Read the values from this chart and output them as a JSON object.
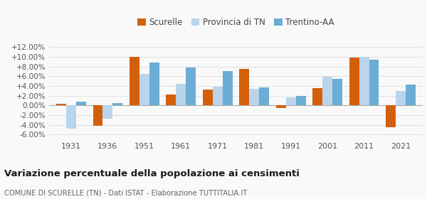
{
  "years": [
    1931,
    1936,
    1951,
    1961,
    1971,
    1981,
    1991,
    2001,
    2011,
    2021
  ],
  "scurelle": [
    0.003,
    -0.042,
    0.1,
    0.022,
    0.032,
    0.075,
    -0.005,
    0.035,
    0.098,
    -0.045
  ],
  "provincia_tn": [
    -0.048,
    -0.028,
    0.065,
    0.044,
    0.038,
    0.034,
    0.016,
    0.059,
    0.1,
    0.03
  ],
  "trentino_aa": [
    0.008,
    0.004,
    0.088,
    0.078,
    0.07,
    0.037,
    0.019,
    0.055,
    0.094,
    0.043
  ],
  "color_scurelle": "#d45f0a",
  "color_provincia": "#bad4eb",
  "color_trentino": "#6aadd5",
  "title": "Variazione percentuale della popolazione ai censimenti",
  "subtitle": "COMUNE DI SCURELLE (TN) - Dati ISTAT - Elaborazione TUTTITALIA.IT",
  "legend_labels": [
    "Scurelle",
    "Provincia di TN",
    "Trentino-AA"
  ],
  "ylim": [
    -0.07,
    0.135
  ],
  "yticks": [
    -0.06,
    -0.04,
    -0.02,
    0.0,
    0.02,
    0.04,
    0.06,
    0.08,
    0.1,
    0.12
  ],
  "bg_color": "#f9f9f9",
  "grid_color": "#e0e0e0"
}
